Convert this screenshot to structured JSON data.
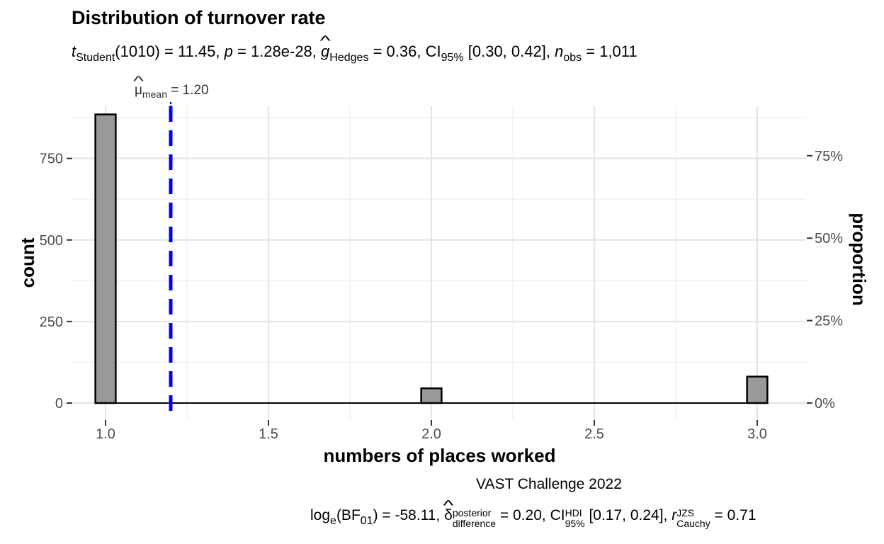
{
  "chart_data": {
    "type": "bar",
    "title": "Distribution of turnover rate",
    "subtitle": {
      "t_symbol": "t",
      "t_sub": "Student",
      "t_value": "(1010) = 11.45,",
      "p_symbol": "p",
      "p_value": "= 1.28e-28,",
      "g_symbol": "g",
      "g_sub": "Hedges",
      "g_value": "= 0.36, CI",
      "ci_sub": "95%",
      "ci_value": "[0.30, 0.42],",
      "n_symbol": "n",
      "n_sub": "obs",
      "n_value": "= 1,011"
    },
    "mean_label": {
      "symbol": "μ",
      "sub": "mean",
      "value": "= 1.20"
    },
    "mean_value": 1.2,
    "xlabel": "numbers of places worked",
    "ylabel": "count",
    "ylabel_right": "proportion",
    "xlim": [
      0.9,
      3.15
    ],
    "ylim": [
      -50,
      910
    ],
    "bin_width": 0.0625,
    "x_ticks": [
      1.0,
      1.5,
      2.0,
      2.5,
      3.0
    ],
    "x_tick_labels": [
      "1.0",
      "1.5",
      "2.0",
      "2.5",
      "3.0"
    ],
    "y_ticks": [
      0,
      250,
      500,
      750
    ],
    "y_tick_labels": [
      "0",
      "250",
      "500",
      "750"
    ],
    "y2_ticks": [
      0,
      0.25,
      0.5,
      0.75
    ],
    "y2_tick_labels": [
      "0%",
      "25%",
      "50%",
      "75%"
    ],
    "total": 1011,
    "bins": [
      {
        "x": 1.0,
        "count": 885
      },
      {
        "x": 2.0,
        "count": 45
      },
      {
        "x": 3.0,
        "count": 81
      }
    ],
    "grid": true,
    "colors": {
      "bar": "#999999",
      "mean_line": "#0000ff",
      "grid": "#ebebeb"
    },
    "source": "VAST Challenge 2022",
    "caption": {
      "log_text": "log",
      "log_sub": "e",
      "bf_text": "(BF",
      "bf_sub": "01",
      "bf_value": ") = -58.11,",
      "delta_symbol": "δ",
      "delta_sup": "posterior",
      "delta_sub": "difference",
      "delta_value": "= 0.20, CI",
      "hdi_sup": "HDI",
      "hdi_sub": "95%",
      "hdi_value": "[0.17, 0.24],",
      "r_symbol": "r",
      "r_sup": "JZS",
      "r_sub": "Cauchy",
      "r_value": "= 0.71"
    }
  }
}
